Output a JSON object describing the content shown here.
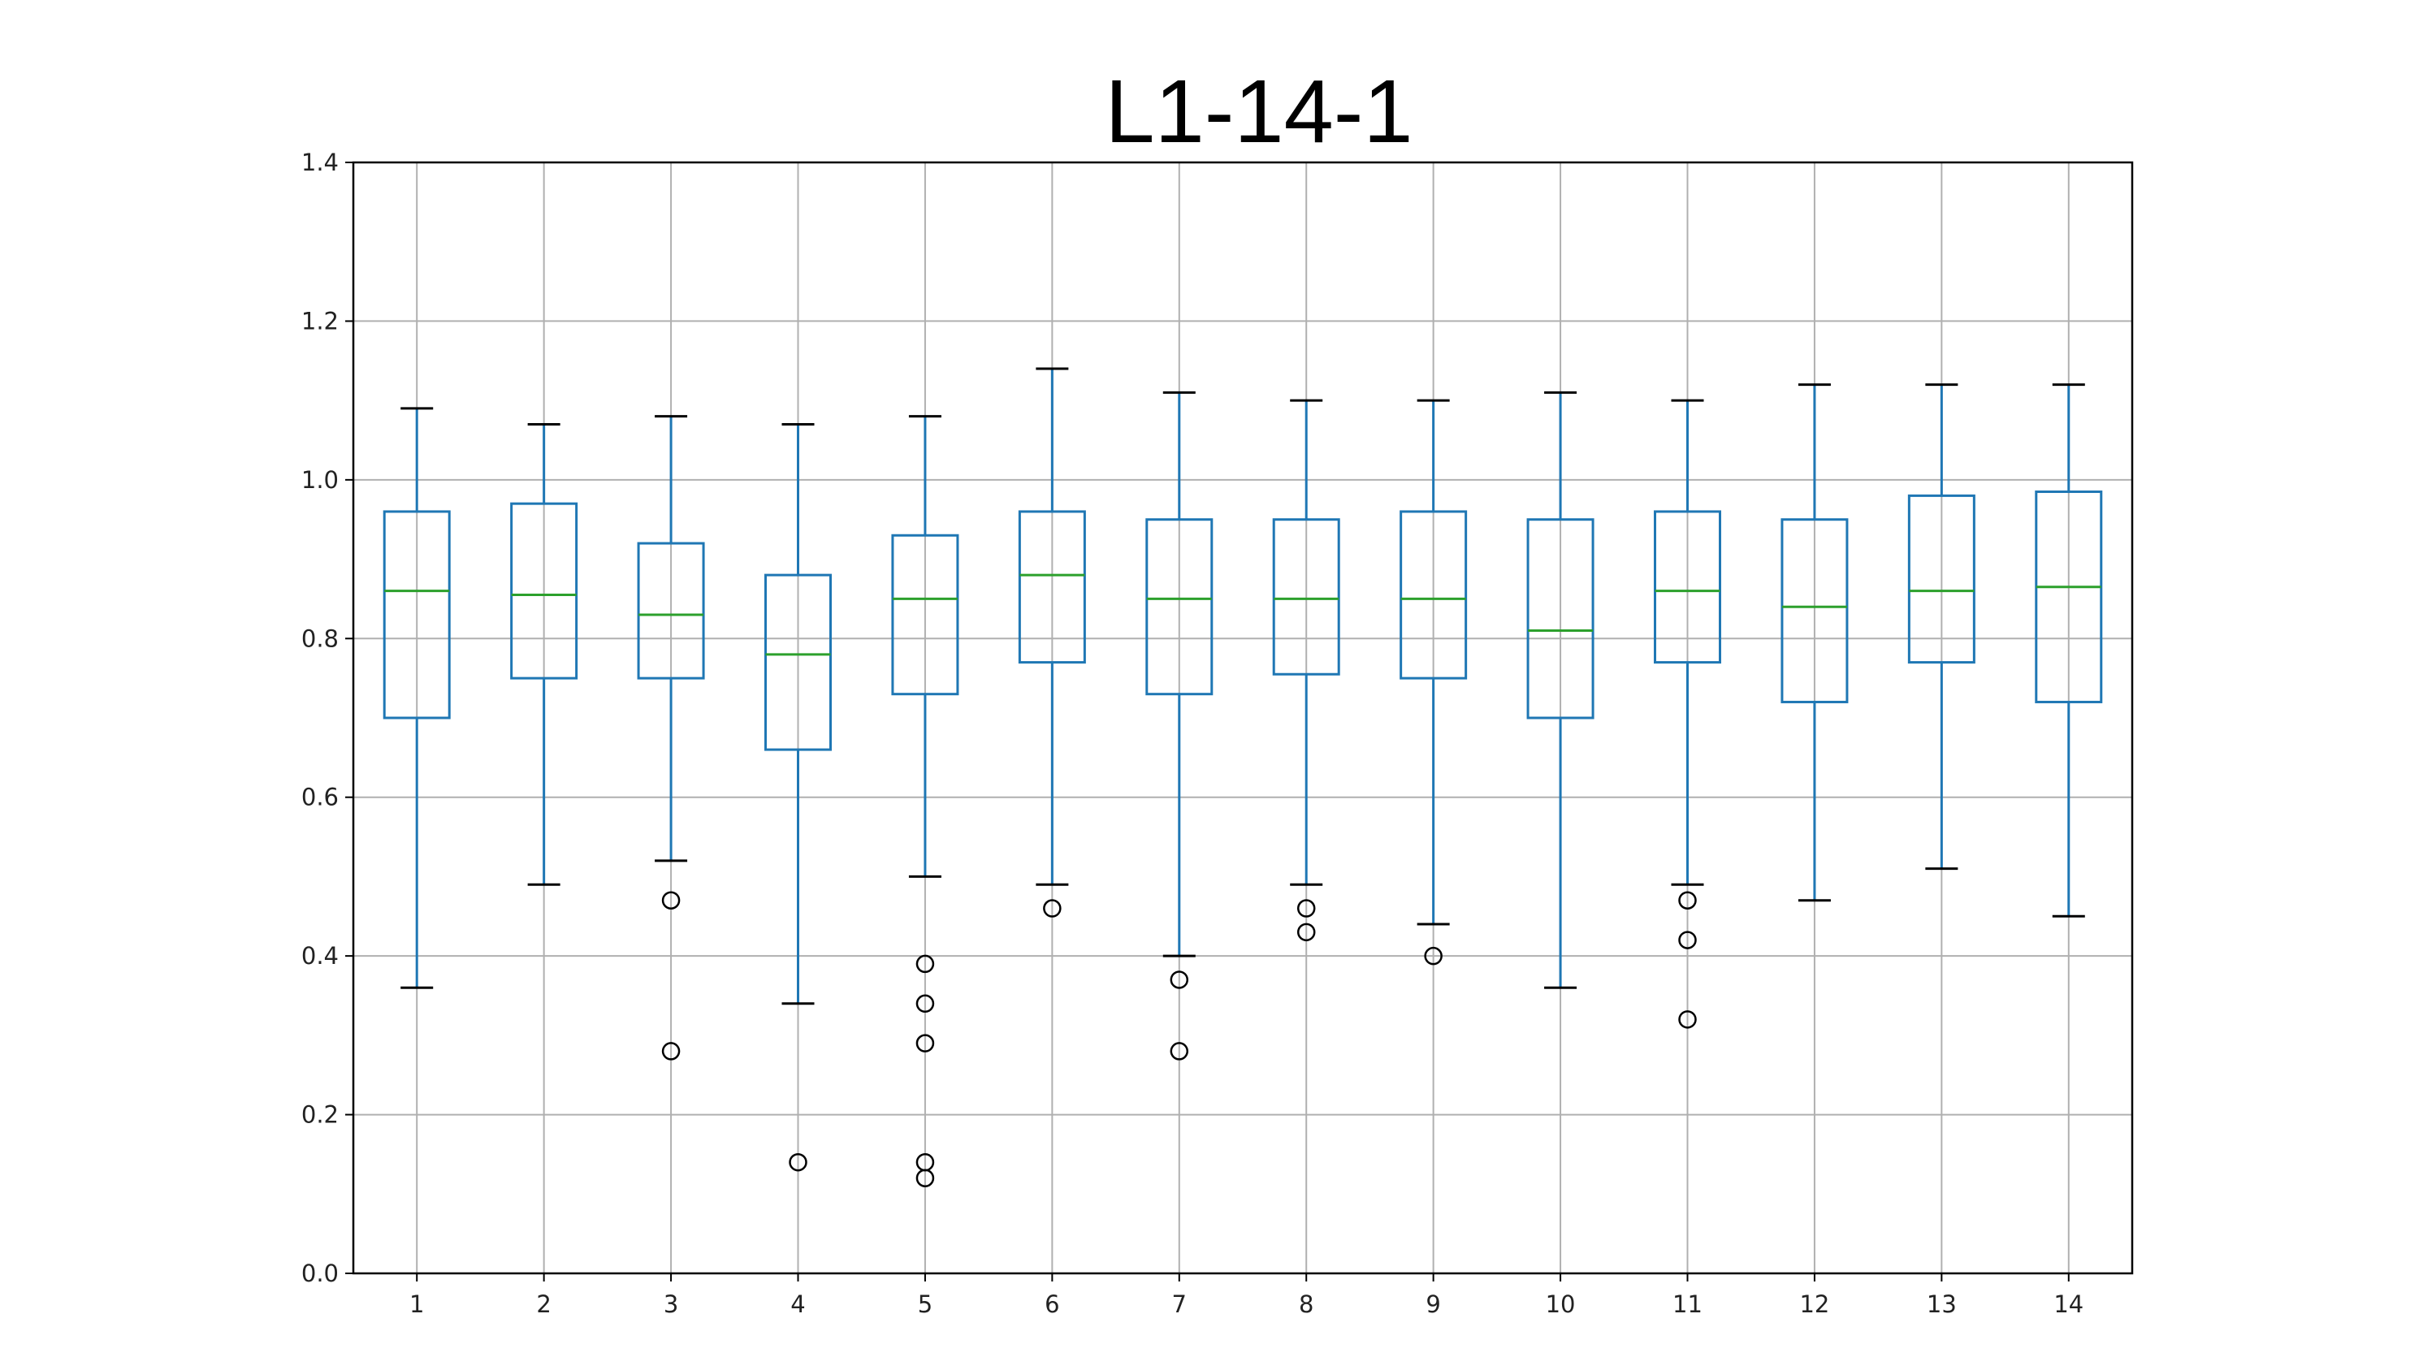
{
  "chart_data": {
    "type": "box",
    "title": "L1-14-1",
    "xlabel": "",
    "ylabel": "",
    "ylim": [
      0.0,
      1.4
    ],
    "yticks": [
      "0.0",
      "0.2",
      "0.4",
      "0.6",
      "0.8",
      "1.0",
      "1.2",
      "1.4"
    ],
    "categories": [
      "1",
      "2",
      "3",
      "4",
      "5",
      "6",
      "7",
      "8",
      "9",
      "10",
      "11",
      "12",
      "13",
      "14"
    ],
    "grid": true,
    "boxes": [
      {
        "category": "1",
        "whisker_low": 0.36,
        "q1": 0.7,
        "median": 0.86,
        "q3": 0.96,
        "whisker_high": 1.09,
        "outliers": []
      },
      {
        "category": "2",
        "whisker_low": 0.49,
        "q1": 0.75,
        "median": 0.855,
        "q3": 0.97,
        "whisker_high": 1.07,
        "outliers": []
      },
      {
        "category": "3",
        "whisker_low": 0.52,
        "q1": 0.75,
        "median": 0.83,
        "q3": 0.92,
        "whisker_high": 1.08,
        "outliers": [
          0.47,
          0.28
        ]
      },
      {
        "category": "4",
        "whisker_low": 0.34,
        "q1": 0.66,
        "median": 0.78,
        "q3": 0.88,
        "whisker_high": 1.07,
        "outliers": [
          0.14
        ]
      },
      {
        "category": "5",
        "whisker_low": 0.5,
        "q1": 0.73,
        "median": 0.85,
        "q3": 0.93,
        "whisker_high": 1.08,
        "outliers": [
          0.39,
          0.34,
          0.29,
          0.14,
          0.12
        ]
      },
      {
        "category": "6",
        "whisker_low": 0.49,
        "q1": 0.77,
        "median": 0.88,
        "q3": 0.96,
        "whisker_high": 1.14,
        "outliers": [
          0.46
        ]
      },
      {
        "category": "7",
        "whisker_low": 0.4,
        "q1": 0.73,
        "median": 0.85,
        "q3": 0.95,
        "whisker_high": 1.11,
        "outliers": [
          0.37,
          0.28
        ]
      },
      {
        "category": "8",
        "whisker_low": 0.49,
        "q1": 0.755,
        "median": 0.85,
        "q3": 0.95,
        "whisker_high": 1.1,
        "outliers": [
          0.46,
          0.43
        ]
      },
      {
        "category": "9",
        "whisker_low": 0.44,
        "q1": 0.75,
        "median": 0.85,
        "q3": 0.96,
        "whisker_high": 1.1,
        "outliers": [
          0.4
        ]
      },
      {
        "category": "10",
        "whisker_low": 0.36,
        "q1": 0.7,
        "median": 0.81,
        "q3": 0.95,
        "whisker_high": 1.11,
        "outliers": []
      },
      {
        "category": "11",
        "whisker_low": 0.49,
        "q1": 0.77,
        "median": 0.86,
        "q3": 0.96,
        "whisker_high": 1.1,
        "outliers": [
          0.47,
          0.42,
          0.32
        ]
      },
      {
        "category": "12",
        "whisker_low": 0.47,
        "q1": 0.72,
        "median": 0.84,
        "q3": 0.95,
        "whisker_high": 1.12,
        "outliers": []
      },
      {
        "category": "13",
        "whisker_low": 0.51,
        "q1": 0.77,
        "median": 0.86,
        "q3": 0.98,
        "whisker_high": 1.12,
        "outliers": []
      },
      {
        "category": "14",
        "whisker_low": 0.45,
        "q1": 0.72,
        "median": 0.865,
        "q3": 0.985,
        "whisker_high": 1.12,
        "outliers": []
      }
    ],
    "colors": {
      "box": "#1f77b4",
      "median": "#2ca02c",
      "cap": "#000000",
      "grid": "#b0b0b0",
      "axes": "#000000",
      "outlier": "#000000"
    }
  }
}
